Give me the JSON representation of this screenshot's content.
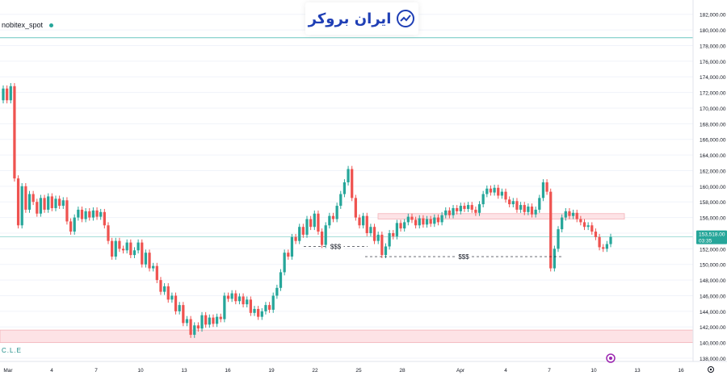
{
  "symbol": "nobitex_spot",
  "logo_text": "ایران بروکر",
  "indicator_label": "C.L.E",
  "colors": {
    "up": "#26a69a",
    "down": "#ef5350",
    "zone_fill": "#fde3e6",
    "zone_line": "#f3b3b9",
    "hline": "#6cc7c0",
    "grid": "#f0f3fa",
    "axis_text": "#131722",
    "price_tag": "#26a69a"
  },
  "chart_data": {
    "type": "candlestick",
    "y_axis": {
      "min": 138000,
      "max": 183000,
      "ticks": [
        "138,000.00",
        "140,000.00",
        "142,000.00",
        "144,000.00",
        "146,000.00",
        "148,000.00",
        "150,000.00",
        "152,000.00",
        "154,000.00",
        "156,000.00",
        "158,000.00",
        "160,000.00",
        "162,000.00",
        "164,000.00",
        "166,000.00",
        "168,000.00",
        "170,000.00",
        "172,000.00",
        "174,000.00",
        "176,000.00",
        "178,000.00",
        "180,000.00",
        "182,000.00"
      ]
    },
    "x_labels": [
      "Mar",
      "4",
      "7",
      "10",
      "13",
      "16",
      "19",
      "22",
      "25",
      "28",
      "Apr",
      "4",
      "7",
      "10",
      "13",
      "16"
    ],
    "last_price": "153,518.00",
    "countdown": "03:35",
    "horizontal_line": 179000,
    "zones": [
      {
        "from": 140000,
        "to": 141600
      },
      {
        "from": 155800,
        "to": 156500
      }
    ],
    "liquidity_lines": [
      {
        "label": "$$$",
        "price": 152300
      },
      {
        "label": "$$$",
        "price": 151000
      }
    ],
    "series": [
      {
        "o": 171000,
        "c": 172500
      },
      {
        "o": 172500,
        "c": 171000
      },
      {
        "o": 171000,
        "c": 172800
      },
      {
        "o": 172800,
        "c": 161000
      },
      {
        "o": 161000,
        "c": 155000
      },
      {
        "o": 155000,
        "c": 160000
      },
      {
        "o": 160000,
        "c": 157000
      },
      {
        "o": 157000,
        "c": 159000
      },
      {
        "o": 159000,
        "c": 158000
      },
      {
        "o": 158000,
        "c": 156500
      },
      {
        "o": 156500,
        "c": 158500
      },
      {
        "o": 158500,
        "c": 157000
      },
      {
        "o": 157000,
        "c": 158700
      },
      {
        "o": 158700,
        "c": 157200
      },
      {
        "o": 157200,
        "c": 158400
      },
      {
        "o": 158400,
        "c": 157500
      },
      {
        "o": 157500,
        "c": 158200
      },
      {
        "o": 158200,
        "c": 155500
      },
      {
        "o": 155500,
        "c": 154200
      },
      {
        "o": 154200,
        "c": 156000
      },
      {
        "o": 156000,
        "c": 157000
      },
      {
        "o": 157000,
        "c": 155800
      },
      {
        "o": 155800,
        "c": 156800
      },
      {
        "o": 156800,
        "c": 156000
      },
      {
        "o": 156000,
        "c": 156900
      },
      {
        "o": 156900,
        "c": 156100
      },
      {
        "o": 156100,
        "c": 156700
      },
      {
        "o": 156700,
        "c": 155000
      },
      {
        "o": 155000,
        "c": 153000
      },
      {
        "o": 153000,
        "c": 151000
      },
      {
        "o": 151000,
        "c": 153000
      },
      {
        "o": 153000,
        "c": 152000
      },
      {
        "o": 152000,
        "c": 151800
      },
      {
        "o": 151800,
        "c": 152800
      },
      {
        "o": 152800,
        "c": 151200
      },
      {
        "o": 151200,
        "c": 151800
      },
      {
        "o": 151800,
        "c": 152800
      },
      {
        "o": 152800,
        "c": 150000
      },
      {
        "o": 150000,
        "c": 151500
      },
      {
        "o": 151500,
        "c": 149500
      },
      {
        "o": 149500,
        "c": 149800
      },
      {
        "o": 149800,
        "c": 148000
      },
      {
        "o": 148000,
        "c": 146500
      },
      {
        "o": 146500,
        "c": 147200
      },
      {
        "o": 147200,
        "c": 145500
      },
      {
        "o": 145500,
        "c": 146000
      },
      {
        "o": 146000,
        "c": 144000
      },
      {
        "o": 144000,
        "c": 144800
      },
      {
        "o": 144800,
        "c": 142500
      },
      {
        "o": 142500,
        "c": 143000
      },
      {
        "o": 143000,
        "c": 141000
      },
      {
        "o": 141000,
        "c": 142200
      },
      {
        "o": 142200,
        "c": 141800
      },
      {
        "o": 141800,
        "c": 143500
      },
      {
        "o": 143500,
        "c": 142300
      },
      {
        "o": 142300,
        "c": 143200
      },
      {
        "o": 143200,
        "c": 142400
      },
      {
        "o": 142400,
        "c": 143300
      },
      {
        "o": 143300,
        "c": 143000
      },
      {
        "o": 143000,
        "c": 146000
      },
      {
        "o": 146000,
        "c": 145600
      },
      {
        "o": 145600,
        "c": 146300
      },
      {
        "o": 146300,
        "c": 145300
      },
      {
        "o": 145300,
        "c": 145900
      },
      {
        "o": 145900,
        "c": 144900
      },
      {
        "o": 144900,
        "c": 145500
      },
      {
        "o": 145500,
        "c": 143800
      },
      {
        "o": 143800,
        "c": 144300
      },
      {
        "o": 144300,
        "c": 143300
      },
      {
        "o": 143300,
        "c": 144000
      },
      {
        "o": 144000,
        "c": 144800
      },
      {
        "o": 144800,
        "c": 144200
      },
      {
        "o": 144200,
        "c": 146000
      },
      {
        "o": 146000,
        "c": 147000
      },
      {
        "o": 147000,
        "c": 149000
      },
      {
        "o": 149000,
        "c": 151500
      },
      {
        "o": 151500,
        "c": 151000
      },
      {
        "o": 151000,
        "c": 153500
      },
      {
        "o": 153500,
        "c": 153000
      },
      {
        "o": 153000,
        "c": 154800
      },
      {
        "o": 154800,
        "c": 153800
      },
      {
        "o": 153800,
        "c": 155800
      },
      {
        "o": 155800,
        "c": 154800
      },
      {
        "o": 154800,
        "c": 156500
      },
      {
        "o": 156500,
        "c": 154200
      },
      {
        "o": 154200,
        "c": 152500
      },
      {
        "o": 152500,
        "c": 155000
      },
      {
        "o": 155000,
        "c": 156200
      },
      {
        "o": 156200,
        "c": 155800
      },
      {
        "o": 155800,
        "c": 157500
      },
      {
        "o": 157500,
        "c": 159000
      },
      {
        "o": 159000,
        "c": 160500
      },
      {
        "o": 160500,
        "c": 162200
      },
      {
        "o": 162200,
        "c": 158500
      },
      {
        "o": 158500,
        "c": 156000
      },
      {
        "o": 156000,
        "c": 155000
      },
      {
        "o": 155000,
        "c": 156200
      },
      {
        "o": 156200,
        "c": 154000
      },
      {
        "o": 154000,
        "c": 154800
      },
      {
        "o": 154800,
        "c": 153000
      },
      {
        "o": 153000,
        "c": 153800
      },
      {
        "o": 153800,
        "c": 151200
      },
      {
        "o": 151200,
        "c": 152300
      },
      {
        "o": 152300,
        "c": 154000
      },
      {
        "o": 154000,
        "c": 153600
      },
      {
        "o": 153600,
        "c": 155300
      },
      {
        "o": 155300,
        "c": 154600
      },
      {
        "o": 154600,
        "c": 155400
      },
      {
        "o": 155400,
        "c": 156100
      },
      {
        "o": 156100,
        "c": 155700
      },
      {
        "o": 155700,
        "c": 155000
      },
      {
        "o": 155000,
        "c": 155900
      },
      {
        "o": 155900,
        "c": 155100
      },
      {
        "o": 155100,
        "c": 155800
      },
      {
        "o": 155800,
        "c": 155200
      },
      {
        "o": 155200,
        "c": 156000
      },
      {
        "o": 156000,
        "c": 155400
      },
      {
        "o": 155400,
        "c": 156300
      },
      {
        "o": 156300,
        "c": 156900
      },
      {
        "o": 156900,
        "c": 156300
      },
      {
        "o": 156300,
        "c": 157200
      },
      {
        "o": 157200,
        "c": 156800
      },
      {
        "o": 156800,
        "c": 157500
      },
      {
        "o": 157500,
        "c": 157100
      },
      {
        "o": 157100,
        "c": 157600
      },
      {
        "o": 157600,
        "c": 157000
      },
      {
        "o": 157000,
        "c": 156600
      },
      {
        "o": 156600,
        "c": 157700
      },
      {
        "o": 157700,
        "c": 159000
      },
      {
        "o": 159000,
        "c": 159700
      },
      {
        "o": 159700,
        "c": 159200
      },
      {
        "o": 159200,
        "c": 159800
      },
      {
        "o": 159800,
        "c": 158800
      },
      {
        "o": 158800,
        "c": 159300
      },
      {
        "o": 159300,
        "c": 158300
      },
      {
        "o": 158300,
        "c": 157700
      },
      {
        "o": 157700,
        "c": 158100
      },
      {
        "o": 158100,
        "c": 157000
      },
      {
        "o": 157000,
        "c": 157600
      },
      {
        "o": 157600,
        "c": 156700
      },
      {
        "o": 156700,
        "c": 157400
      },
      {
        "o": 157400,
        "c": 156400
      },
      {
        "o": 156400,
        "c": 157000
      },
      {
        "o": 157000,
        "c": 158500
      },
      {
        "o": 158500,
        "c": 160500
      },
      {
        "o": 160500,
        "c": 159300
      },
      {
        "o": 159300,
        "c": 149500
      },
      {
        "o": 149500,
        "c": 152000
      },
      {
        "o": 152000,
        "c": 154500
      },
      {
        "o": 154500,
        "c": 156000
      },
      {
        "o": 156000,
        "c": 156800
      },
      {
        "o": 156800,
        "c": 156200
      },
      {
        "o": 156200,
        "c": 156600
      },
      {
        "o": 156600,
        "c": 155800
      },
      {
        "o": 155800,
        "c": 155400
      },
      {
        "o": 155400,
        "c": 154800
      },
      {
        "o": 154800,
        "c": 155000
      },
      {
        "o": 155000,
        "c": 154200
      },
      {
        "o": 154200,
        "c": 153500
      },
      {
        "o": 153500,
        "c": 152200
      },
      {
        "o": 152200,
        "c": 152000
      },
      {
        "o": 152000,
        "c": 152600
      },
      {
        "o": 152600,
        "c": 153518
      }
    ]
  }
}
